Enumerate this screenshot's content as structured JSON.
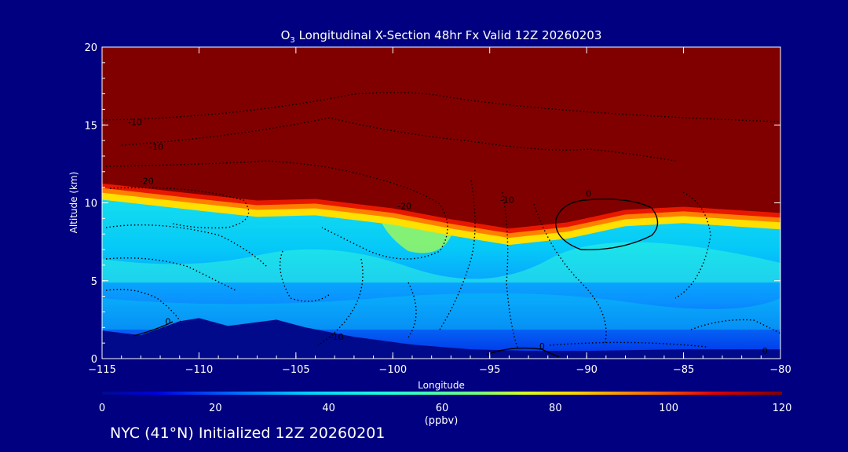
{
  "chart_data": {
    "type": "heatmap",
    "title_prefix": "O",
    "title_sub": "3",
    "title_rest": " Longitudinal X-Section 48hr  Fx Valid 12Z 20260203",
    "xlabel": "Longitude",
    "ylabel": "Altitude (km)",
    "xlim": [
      -115,
      -80
    ],
    "ylim": [
      0,
      20
    ],
    "xticks": [
      "-115",
      "-110",
      "-105",
      "-100",
      "-95",
      "-90",
      "-85",
      "-80"
    ],
    "yticks": [
      "0",
      "5",
      "10",
      "15",
      "20"
    ],
    "colorbar": {
      "range": [
        0,
        120
      ],
      "ticks": [
        "0",
        "20",
        "40",
        "60",
        "80",
        "100",
        "120"
      ],
      "unit": "(ppbv)"
    },
    "tropopause_km": [
      [
        -115,
        11.1
      ],
      [
        -110,
        10.4
      ],
      [
        -107,
        10.0
      ],
      [
        -104,
        10.1
      ],
      [
        -100,
        9.5
      ],
      [
        -97,
        8.8
      ],
      [
        -94,
        8.2
      ],
      [
        -91,
        8.6
      ],
      [
        -88,
        9.4
      ],
      [
        -85,
        9.6
      ],
      [
        -80,
        9.2
      ]
    ],
    "terrain_km": [
      [
        -115,
        1.8
      ],
      [
        -113,
        1.5
      ],
      [
        -111,
        2.4
      ],
      [
        -110,
        2.6
      ],
      [
        -108.5,
        2.1
      ],
      [
        -106,
        2.5
      ],
      [
        -104.5,
        2.0
      ],
      [
        -102,
        1.4
      ],
      [
        -99,
        0.9
      ],
      [
        -96,
        0.6
      ],
      [
        -93,
        0.5
      ],
      [
        -90,
        0.5
      ],
      [
        -85,
        0.6
      ],
      [
        -80,
        0.6
      ]
    ],
    "contour_labels": [
      {
        "text": "-10",
        "lon": -113.3,
        "alt": 15.0
      },
      {
        "text": "-10",
        "lon": -112.2,
        "alt": 13.4
      },
      {
        "text": "-20",
        "lon": -112.7,
        "alt": 11.2
      },
      {
        "text": "-20",
        "lon": -99.4,
        "alt": 9.6
      },
      {
        "text": "-10",
        "lon": -94.1,
        "alt": 10.0
      },
      {
        "text": "0",
        "lon": -89.9,
        "alt": 10.4
      },
      {
        "text": "0",
        "lon": -111.6,
        "alt": 2.2
      },
      {
        "text": "-10",
        "lon": -102.9,
        "alt": 1.2
      },
      {
        "text": "0",
        "lon": -92.3,
        "alt": 0.6
      },
      {
        "text": "0",
        "lon": -80.8,
        "alt": 0.3
      }
    ]
  },
  "caption": "NYC (41°N) Initialized 12Z 20260201"
}
